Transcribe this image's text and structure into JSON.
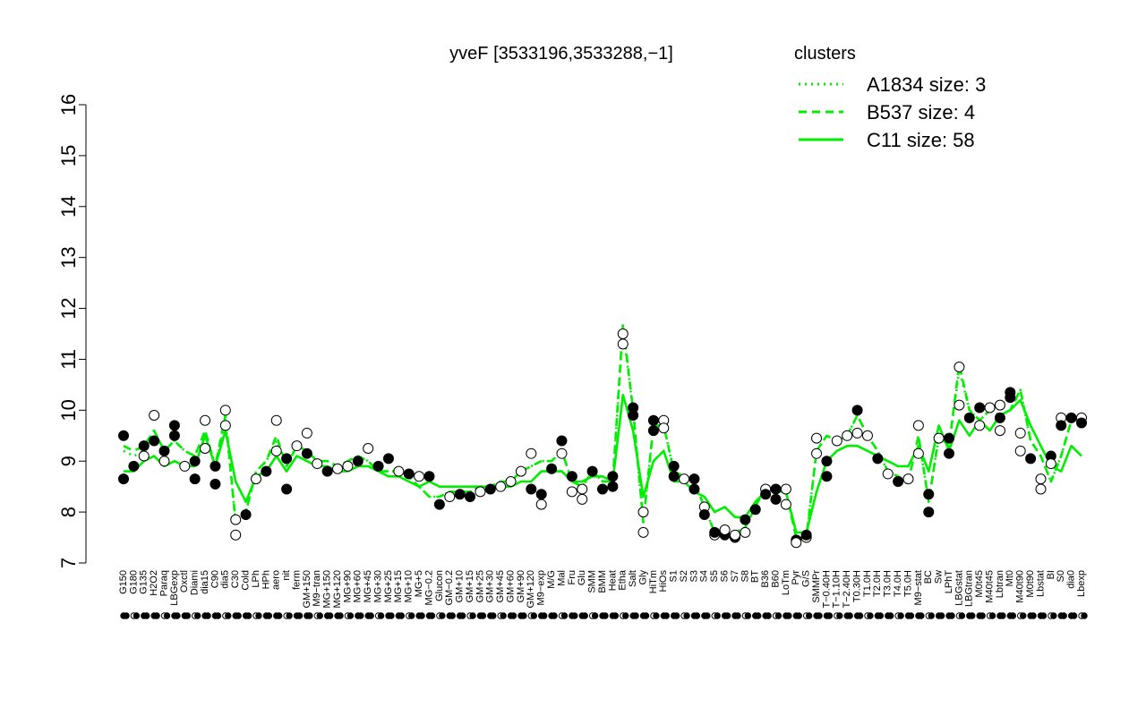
{
  "chart_data": {
    "type": "line",
    "title": "yveF [3533196,3533288,−1]",
    "xlabel": "",
    "ylabel": "",
    "ylim": [
      7,
      16
    ],
    "y_ticks": [
      7,
      8,
      9,
      10,
      11,
      12,
      13,
      14,
      15,
      16
    ],
    "grid": false,
    "legend_placement": "top-right",
    "legend": {
      "title": "clusters",
      "entries": [
        {
          "label": "A1834 size: 3",
          "style": "dotted"
        },
        {
          "label": "B537 size: 4",
          "style": "dashed"
        },
        {
          "label": "C11 size: 58",
          "style": "solid"
        }
      ]
    },
    "x_tick_labels": [
      "G150",
      "G180",
      "G135",
      "H2O2",
      "Paraq",
      "LBGexp",
      "Oxctl",
      "Diami",
      "dia15",
      "C90",
      "dia5",
      "C30",
      "Cold",
      "LPh",
      "HPh",
      "aero",
      "nit",
      "ferm",
      "GM+150",
      "M9−tran",
      "MG+150",
      "MG+120",
      "MG+90",
      "MG+60",
      "MG+45",
      "MG+30",
      "MG+25",
      "MG+15",
      "MG+10",
      "MG+5",
      "MG−0.2",
      "Glucon",
      "GM−0.2",
      "GM+10",
      "GM+15",
      "GM+25",
      "GM+30",
      "GM+45",
      "GM+60",
      "GM+90",
      "GM+120",
      "M9−exp",
      "M/G",
      "Mal",
      "Fru",
      "Glu",
      "SMM",
      "BMM",
      "Heat",
      "Etha",
      "Salt",
      "Gly",
      "HiTm",
      "HiOs",
      "S1",
      "S2",
      "S3",
      "S4",
      "S5",
      "S6",
      "S7",
      "S8",
      "BT",
      "B36",
      "B60",
      "LoTm",
      "Pyr",
      "G/S",
      "SMMPr",
      "T−0.40H",
      "T−1.10H",
      "T−2.40H",
      "T0.30H",
      "T1.0H",
      "T2.0H",
      "T3.0H",
      "T4.0H",
      "T5.0H",
      "M9−stat",
      "BC",
      "Sw",
      "LPhT",
      "LBGstat",
      "LBGtran",
      "M0t45",
      "M40t45",
      "Lbtran",
      "Mt0",
      "M40t90",
      "M0t90",
      "Lbstat",
      "BI",
      "S0",
      "dia0",
      "Lbexp"
    ],
    "series": [
      {
        "name": "C11 size: 58",
        "style": "solid",
        "values": [
          8.8,
          8.8,
          9.0,
          9.1,
          8.9,
          9.0,
          8.9,
          8.9,
          9.5,
          8.9,
          9.6,
          8.6,
          8.2,
          8.7,
          8.8,
          9.1,
          8.8,
          9.1,
          9.0,
          8.9,
          8.9,
          8.8,
          8.8,
          8.9,
          8.9,
          8.8,
          8.7,
          8.7,
          8.6,
          8.5,
          8.6,
          8.5,
          8.5,
          8.5,
          8.5,
          8.5,
          8.5,
          8.5,
          8.5,
          8.6,
          8.6,
          8.8,
          8.8,
          8.8,
          8.6,
          8.6,
          8.7,
          8.7,
          8.6,
          10.3,
          9.6,
          8.3,
          9.0,
          9.2,
          8.6,
          8.6,
          8.4,
          8.3,
          8.0,
          8.1,
          7.9,
          7.9,
          8.2,
          8.4,
          8.5,
          8.4,
          7.6,
          7.6,
          8.4,
          9.0,
          9.2,
          9.3,
          9.3,
          9.2,
          9.1,
          9.0,
          8.9,
          8.9,
          9.3,
          8.8,
          9.7,
          9.2,
          9.8,
          9.5,
          9.8,
          9.6,
          9.9,
          10.0,
          10.2,
          9.7,
          9.3,
          8.9,
          8.8,
          9.3,
          9.1
        ]
      },
      {
        "name": "B537 size: 4",
        "style": "dashed",
        "values": [
          9.3,
          9.2,
          9.3,
          9.6,
          9.2,
          9.4,
          9.2,
          9.1,
          9.6,
          8.9,
          9.9,
          7.8,
          8.0,
          8.8,
          9.0,
          9.5,
          8.9,
          9.3,
          9.2,
          9.0,
          9.0,
          8.9,
          9.0,
          9.1,
          9.0,
          8.8,
          8.8,
          8.8,
          8.7,
          8.5,
          8.3,
          8.3,
          8.4,
          8.4,
          8.4,
          8.5,
          8.5,
          8.6,
          8.6,
          8.8,
          8.9,
          9.0,
          9.0,
          9.2,
          8.6,
          8.5,
          8.8,
          8.6,
          8.6,
          11.7,
          10.0,
          7.8,
          9.7,
          9.7,
          8.8,
          8.7,
          8.6,
          8.1,
          7.6,
          7.6,
          7.6,
          7.7,
          8.1,
          8.5,
          8.4,
          8.4,
          7.5,
          7.5,
          9.2,
          9.5,
          9.4,
          9.5,
          9.9,
          9.5,
          9.2,
          8.8,
          8.7,
          8.6,
          9.5,
          8.2,
          9.5,
          9.3,
          10.9,
          10.0,
          9.8,
          10.0,
          9.9,
          10.0,
          10.4,
          9.4,
          9.1,
          8.6,
          9.1,
          9.8,
          9.8
        ]
      },
      {
        "name": "A1834 size: 3",
        "style": "dotted",
        "values": [
          9.2,
          9.1,
          9.2,
          9.6,
          9.2,
          9.4,
          9.2,
          9.1,
          9.6,
          8.9,
          9.8,
          7.8,
          8.0,
          8.8,
          9.0,
          9.4,
          8.9,
          9.3,
          9.2,
          9.0,
          9.0,
          8.9,
          9.0,
          9.1,
          9.0,
          8.8,
          8.8,
          8.8,
          8.7,
          8.5,
          8.3,
          8.3,
          8.4,
          8.4,
          8.4,
          8.5,
          8.5,
          8.6,
          8.6,
          8.8,
          8.9,
          9.0,
          9.0,
          9.2,
          8.6,
          8.5,
          8.8,
          8.6,
          8.6,
          11.6,
          10.0,
          7.8,
          9.7,
          9.7,
          8.8,
          8.7,
          8.6,
          8.1,
          7.6,
          7.6,
          7.6,
          7.7,
          8.1,
          8.5,
          8.4,
          8.4,
          7.5,
          7.5,
          9.2,
          9.5,
          9.4,
          9.5,
          9.9,
          9.5,
          9.2,
          8.8,
          8.7,
          8.6,
          9.5,
          8.2,
          9.5,
          9.3,
          10.8,
          10.0,
          9.8,
          10.0,
          9.9,
          10.0,
          10.4,
          9.4,
          9.1,
          8.6,
          9.1,
          9.8,
          9.8
        ]
      }
    ],
    "points": [
      {
        "x": 0,
        "y": 9.5,
        "filled": true
      },
      {
        "x": 0,
        "y": 8.65,
        "filled": true
      },
      {
        "x": 1,
        "y": 8.9,
        "filled": true
      },
      {
        "x": 2,
        "y": 9.3,
        "filled": true
      },
      {
        "x": 2,
        "y": 9.1,
        "filled": false
      },
      {
        "x": 3,
        "y": 9.9,
        "filled": false
      },
      {
        "x": 3,
        "y": 9.4,
        "filled": true
      },
      {
        "x": 4,
        "y": 9.2,
        "filled": true
      },
      {
        "x": 4,
        "y": 9.0,
        "filled": false
      },
      {
        "x": 5,
        "y": 9.7,
        "filled": true
      },
      {
        "x": 5,
        "y": 9.5,
        "filled": true
      },
      {
        "x": 6,
        "y": 8.9,
        "filled": false
      },
      {
        "x": 7,
        "y": 8.65,
        "filled": true
      },
      {
        "x": 7,
        "y": 9.0,
        "filled": true
      },
      {
        "x": 8,
        "y": 9.8,
        "filled": false
      },
      {
        "x": 8,
        "y": 9.25,
        "filled": false
      },
      {
        "x": 9,
        "y": 8.55,
        "filled": true
      },
      {
        "x": 9,
        "y": 8.9,
        "filled": true
      },
      {
        "x": 10,
        "y": 10.0,
        "filled": false
      },
      {
        "x": 10,
        "y": 9.7,
        "filled": false
      },
      {
        "x": 11,
        "y": 7.55,
        "filled": false
      },
      {
        "x": 11,
        "y": 7.85,
        "filled": false
      },
      {
        "x": 12,
        "y": 7.95,
        "filled": true
      },
      {
        "x": 13,
        "y": 8.65,
        "filled": false
      },
      {
        "x": 14,
        "y": 8.8,
        "filled": true
      },
      {
        "x": 15,
        "y": 9.8,
        "filled": false
      },
      {
        "x": 15,
        "y": 9.2,
        "filled": false
      },
      {
        "x": 16,
        "y": 8.45,
        "filled": true
      },
      {
        "x": 16,
        "y": 9.05,
        "filled": true
      },
      {
        "x": 17,
        "y": 9.3,
        "filled": false
      },
      {
        "x": 18,
        "y": 9.55,
        "filled": false
      },
      {
        "x": 18,
        "y": 9.15,
        "filled": true
      },
      {
        "x": 19,
        "y": 8.95,
        "filled": false
      },
      {
        "x": 20,
        "y": 8.8,
        "filled": true
      },
      {
        "x": 21,
        "y": 8.85,
        "filled": false
      },
      {
        "x": 22,
        "y": 8.9,
        "filled": false
      },
      {
        "x": 23,
        "y": 9.0,
        "filled": true
      },
      {
        "x": 24,
        "y": 9.25,
        "filled": false
      },
      {
        "x": 25,
        "y": 8.9,
        "filled": true
      },
      {
        "x": 26,
        "y": 9.05,
        "filled": true
      },
      {
        "x": 27,
        "y": 8.8,
        "filled": false
      },
      {
        "x": 28,
        "y": 8.75,
        "filled": true
      },
      {
        "x": 29,
        "y": 8.7,
        "filled": false
      },
      {
        "x": 30,
        "y": 8.7,
        "filled": true
      },
      {
        "x": 31,
        "y": 8.15,
        "filled": true
      },
      {
        "x": 32,
        "y": 8.3,
        "filled": false
      },
      {
        "x": 33,
        "y": 8.35,
        "filled": true
      },
      {
        "x": 34,
        "y": 8.3,
        "filled": true
      },
      {
        "x": 35,
        "y": 8.4,
        "filled": false
      },
      {
        "x": 36,
        "y": 8.45,
        "filled": true
      },
      {
        "x": 37,
        "y": 8.5,
        "filled": false
      },
      {
        "x": 38,
        "y": 8.6,
        "filled": false
      },
      {
        "x": 39,
        "y": 8.8,
        "filled": false
      },
      {
        "x": 40,
        "y": 8.45,
        "filled": true
      },
      {
        "x": 40,
        "y": 9.15,
        "filled": false
      },
      {
        "x": 41,
        "y": 8.35,
        "filled": true
      },
      {
        "x": 41,
        "y": 8.15,
        "filled": false
      },
      {
        "x": 42,
        "y": 8.85,
        "filled": true
      },
      {
        "x": 43,
        "y": 9.4,
        "filled": true
      },
      {
        "x": 43,
        "y": 9.15,
        "filled": false
      },
      {
        "x": 44,
        "y": 8.4,
        "filled": false
      },
      {
        "x": 44,
        "y": 8.7,
        "filled": true
      },
      {
        "x": 45,
        "y": 8.25,
        "filled": false
      },
      {
        "x": 45,
        "y": 8.45,
        "filled": false
      },
      {
        "x": 46,
        "y": 8.8,
        "filled": true
      },
      {
        "x": 47,
        "y": 8.45,
        "filled": true
      },
      {
        "x": 48,
        "y": 8.5,
        "filled": true
      },
      {
        "x": 48,
        "y": 8.7,
        "filled": true
      },
      {
        "x": 49,
        "y": 11.5,
        "filled": false
      },
      {
        "x": 49,
        "y": 11.3,
        "filled": false
      },
      {
        "x": 50,
        "y": 9.9,
        "filled": true
      },
      {
        "x": 50,
        "y": 10.05,
        "filled": true
      },
      {
        "x": 51,
        "y": 7.6,
        "filled": false
      },
      {
        "x": 51,
        "y": 8.0,
        "filled": false
      },
      {
        "x": 52,
        "y": 9.8,
        "filled": true
      },
      {
        "x": 52,
        "y": 9.6,
        "filled": true
      },
      {
        "x": 53,
        "y": 9.8,
        "filled": false
      },
      {
        "x": 53,
        "y": 9.65,
        "filled": false
      },
      {
        "x": 54,
        "y": 8.7,
        "filled": true
      },
      {
        "x": 54,
        "y": 8.9,
        "filled": true
      },
      {
        "x": 55,
        "y": 8.65,
        "filled": false
      },
      {
        "x": 56,
        "y": 8.45,
        "filled": true
      },
      {
        "x": 56,
        "y": 8.65,
        "filled": true
      },
      {
        "x": 57,
        "y": 8.1,
        "filled": false
      },
      {
        "x": 57,
        "y": 7.95,
        "filled": true
      },
      {
        "x": 58,
        "y": 7.55,
        "filled": false
      },
      {
        "x": 58,
        "y": 7.6,
        "filled": true
      },
      {
        "x": 59,
        "y": 7.55,
        "filled": true
      },
      {
        "x": 59,
        "y": 7.65,
        "filled": false
      },
      {
        "x": 60,
        "y": 7.5,
        "filled": true
      },
      {
        "x": 60,
        "y": 7.55,
        "filled": false
      },
      {
        "x": 61,
        "y": 7.85,
        "filled": true
      },
      {
        "x": 61,
        "y": 7.6,
        "filled": false
      },
      {
        "x": 62,
        "y": 8.05,
        "filled": true
      },
      {
        "x": 63,
        "y": 8.45,
        "filled": false
      },
      {
        "x": 63,
        "y": 8.35,
        "filled": true
      },
      {
        "x": 64,
        "y": 8.25,
        "filled": true
      },
      {
        "x": 64,
        "y": 8.45,
        "filled": true
      },
      {
        "x": 65,
        "y": 8.45,
        "filled": false
      },
      {
        "x": 65,
        "y": 8.15,
        "filled": false
      },
      {
        "x": 66,
        "y": 7.45,
        "filled": true
      },
      {
        "x": 66,
        "y": 7.4,
        "filled": false
      },
      {
        "x": 67,
        "y": 7.5,
        "filled": false
      },
      {
        "x": 67,
        "y": 7.55,
        "filled": true
      },
      {
        "x": 68,
        "y": 9.45,
        "filled": false
      },
      {
        "x": 68,
        "y": 9.15,
        "filled": false
      },
      {
        "x": 69,
        "y": 8.7,
        "filled": true
      },
      {
        "x": 69,
        "y": 9.0,
        "filled": true
      },
      {
        "x": 70,
        "y": 9.4,
        "filled": false
      },
      {
        "x": 71,
        "y": 9.5,
        "filled": false
      },
      {
        "x": 72,
        "y": 10.0,
        "filled": true
      },
      {
        "x": 72,
        "y": 9.55,
        "filled": false
      },
      {
        "x": 73,
        "y": 9.5,
        "filled": false
      },
      {
        "x": 74,
        "y": 9.05,
        "filled": true
      },
      {
        "x": 75,
        "y": 8.75,
        "filled": false
      },
      {
        "x": 76,
        "y": 8.6,
        "filled": true
      },
      {
        "x": 77,
        "y": 8.65,
        "filled": false
      },
      {
        "x": 78,
        "y": 9.7,
        "filled": false
      },
      {
        "x": 78,
        "y": 9.15,
        "filled": false
      },
      {
        "x": 79,
        "y": 8.0,
        "filled": true
      },
      {
        "x": 79,
        "y": 8.35,
        "filled": true
      },
      {
        "x": 80,
        "y": 9.45,
        "filled": false
      },
      {
        "x": 81,
        "y": 9.15,
        "filled": true
      },
      {
        "x": 81,
        "y": 9.45,
        "filled": true
      },
      {
        "x": 82,
        "y": 10.85,
        "filled": false
      },
      {
        "x": 82,
        "y": 10.1,
        "filled": false
      },
      {
        "x": 83,
        "y": 9.85,
        "filled": true
      },
      {
        "x": 84,
        "y": 9.7,
        "filled": false
      },
      {
        "x": 84,
        "y": 10.05,
        "filled": true
      },
      {
        "x": 85,
        "y": 10.05,
        "filled": false
      },
      {
        "x": 86,
        "y": 9.85,
        "filled": true
      },
      {
        "x": 86,
        "y": 9.6,
        "filled": false
      },
      {
        "x": 86,
        "y": 10.1,
        "filled": false
      },
      {
        "x": 87,
        "y": 10.35,
        "filled": true
      },
      {
        "x": 87,
        "y": 10.25,
        "filled": true
      },
      {
        "x": 88,
        "y": 9.55,
        "filled": false
      },
      {
        "x": 88,
        "y": 9.2,
        "filled": false
      },
      {
        "x": 89,
        "y": 9.05,
        "filled": true
      },
      {
        "x": 90,
        "y": 8.45,
        "filled": false
      },
      {
        "x": 90,
        "y": 8.65,
        "filled": false
      },
      {
        "x": 91,
        "y": 9.1,
        "filled": true
      },
      {
        "x": 91,
        "y": 8.95,
        "filled": false
      },
      {
        "x": 92,
        "y": 9.85,
        "filled": false
      },
      {
        "x": 92,
        "y": 9.7,
        "filled": true
      },
      {
        "x": 93,
        "y": 9.85,
        "filled": true
      },
      {
        "x": 94,
        "y": 9.85,
        "filled": false
      },
      {
        "x": 94,
        "y": 9.75,
        "filled": true
      }
    ]
  },
  "colors": {
    "series_line": "#00ee00",
    "legend_text": "#00ee00",
    "axis": "#000000",
    "point_fill": "#000000",
    "point_stroke": "#000000",
    "point_open_fill": "#ffffff"
  }
}
